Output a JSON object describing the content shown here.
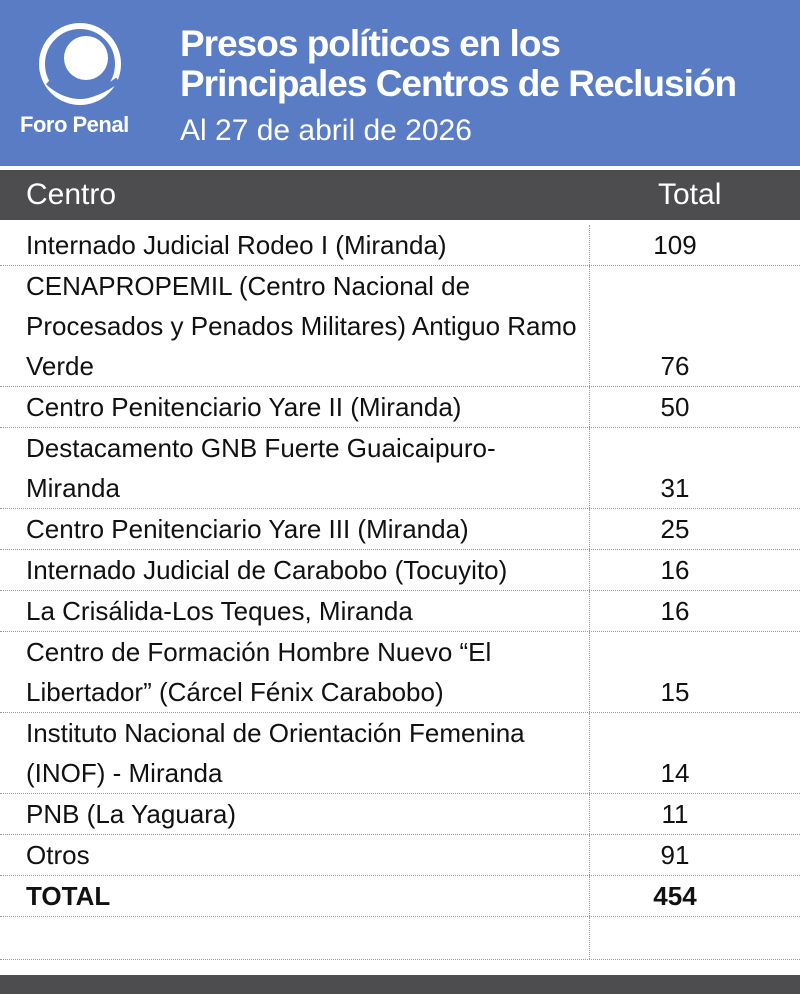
{
  "header": {
    "logo_text": "Foro Penal",
    "title_lines": [
      "Presos políticos en los",
      "Principales Centros de Reclusión"
    ],
    "subtitle": "Al 27 de abril de 2026"
  },
  "table": {
    "columns": [
      "Centro",
      "Total"
    ],
    "rows": [
      [
        "Internado Judicial Rodeo I (Miranda)",
        109
      ],
      [
        "CENAPROPEMIL (Centro Nacional de Procesados y Penados Militares) Antiguo Ramo Verde",
        76
      ],
      [
        "Centro Penitenciario Yare II (Miranda)",
        50
      ],
      [
        "Destacamento GNB Fuerte Guaicaipuro-Miranda",
        31
      ],
      [
        "Centro Penitenciario Yare III (Miranda)",
        25
      ],
      [
        "Internado Judicial de Carabobo (Tocuyito)",
        16
      ],
      [
        "La Crisálida-Los Teques, Miranda",
        16
      ],
      [
        "Centro de Formación Hombre Nuevo “El Libertador” (Cárcel Fénix Carabobo)",
        15
      ],
      [
        "Instituto Nacional de Orientación Femenina (INOF) - Miranda",
        14
      ],
      [
        "PNB (La Yaguara)",
        11
      ],
      [
        "Otros",
        91
      ]
    ],
    "total": [
      "TOTAL",
      454
    ]
  }
}
